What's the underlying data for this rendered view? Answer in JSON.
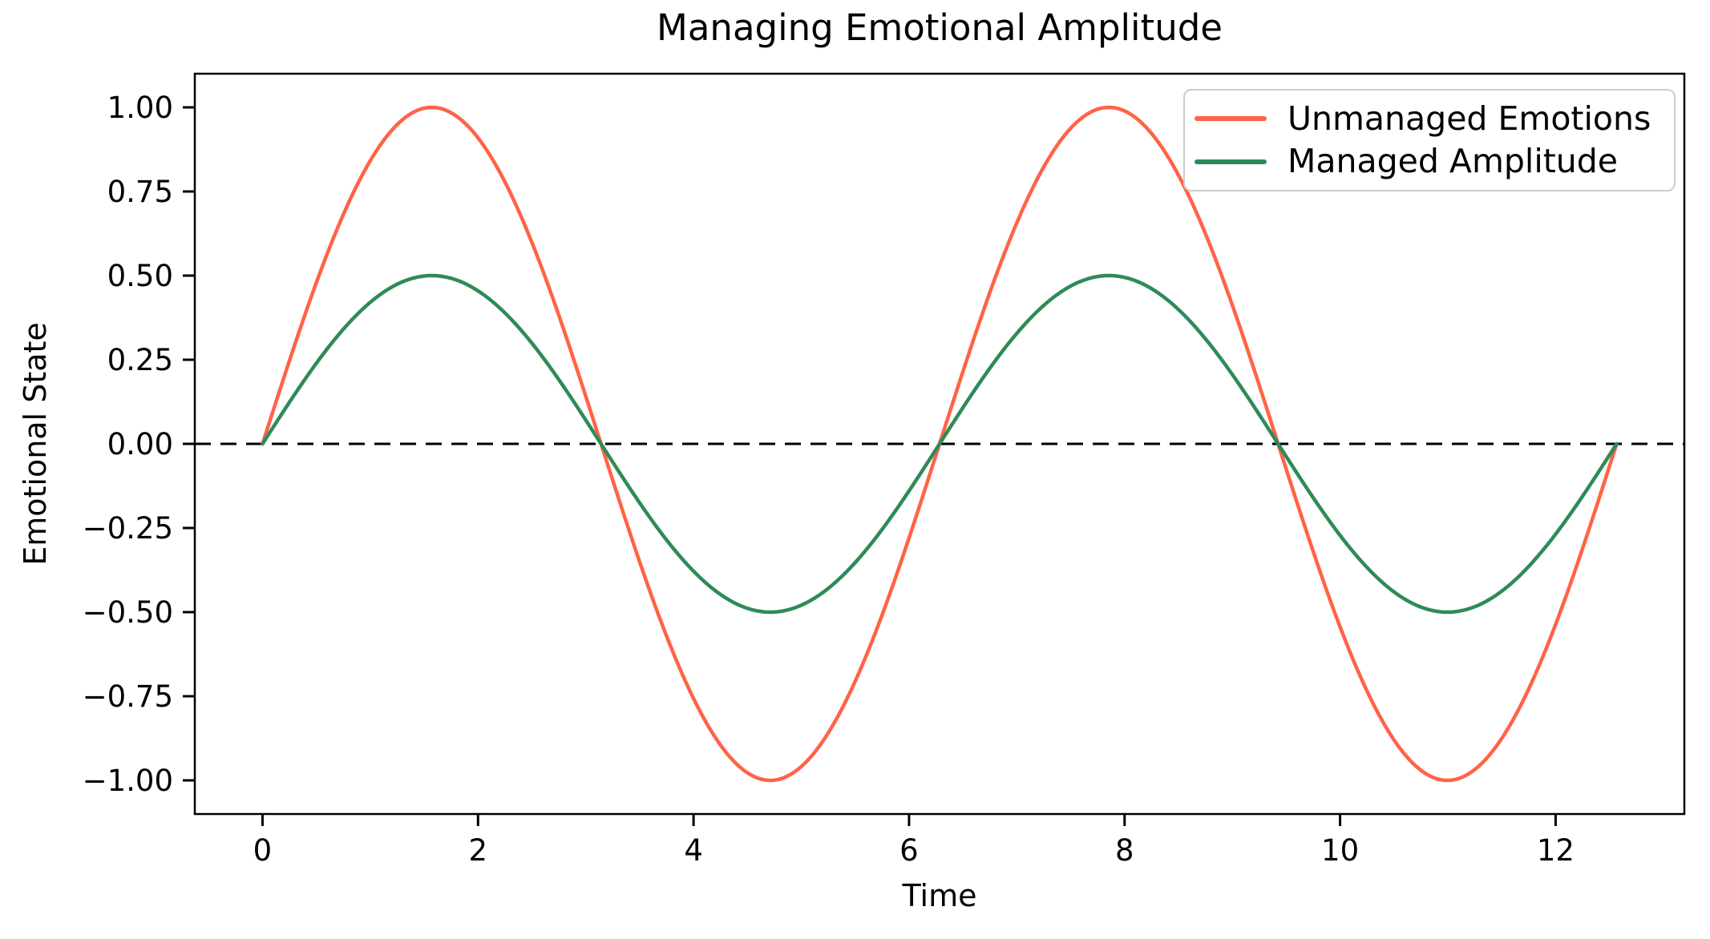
{
  "chart_data": {
    "type": "line",
    "title": "Managing Emotional Amplitude",
    "xlabel": "Time",
    "ylabel": "Emotional State",
    "grid": false,
    "legend_position": "upper right",
    "waveform": "sine",
    "x_range": [
      0,
      12.5664
    ],
    "xlim": [
      -0.6283,
      13.1947
    ],
    "ylim": [
      -1.1,
      1.1
    ],
    "xticks": {
      "values": [
        0,
        2,
        4,
        6,
        8,
        10,
        12
      ],
      "labels": [
        "0",
        "2",
        "4",
        "6",
        "8",
        "10",
        "12"
      ]
    },
    "yticks": {
      "values": [
        1.0,
        0.75,
        0.5,
        0.25,
        0.0,
        -0.25,
        -0.5,
        -0.75,
        -1.0
      ],
      "labels": [
        "1.00",
        "0.75",
        "0.50",
        "0.25",
        "0.00",
        "−0.25",
        "−0.50",
        "−0.75",
        "−1.00"
      ]
    },
    "x": [
      0,
      0.314,
      0.628,
      0.942,
      1.257,
      1.571,
      1.885,
      2.199,
      2.513,
      2.827,
      3.142,
      3.456,
      3.77,
      4.084,
      4.398,
      4.712,
      5.027,
      5.341,
      5.655,
      5.969,
      6.283,
      6.597,
      6.912,
      7.226,
      7.54,
      7.854,
      8.168,
      8.482,
      8.796,
      9.111,
      9.425,
      9.739,
      10.053,
      10.367,
      10.681,
      10.996,
      11.31,
      11.624,
      11.938,
      12.252,
      12.566
    ],
    "series": [
      {
        "name": "Unmanaged Emotions",
        "color": "#FF6347",
        "amplitude": 1.0,
        "y": [
          0,
          0.309,
          0.588,
          0.809,
          0.951,
          1,
          0.951,
          0.809,
          0.588,
          0.309,
          0,
          -0.309,
          -0.588,
          -0.809,
          -0.951,
          -1,
          -0.951,
          -0.809,
          -0.588,
          -0.309,
          0,
          0.309,
          0.588,
          0.809,
          0.951,
          1,
          0.951,
          0.809,
          0.588,
          0.309,
          0,
          -0.309,
          -0.588,
          -0.809,
          -0.951,
          -1,
          -0.951,
          -0.809,
          -0.588,
          -0.309,
          0
        ]
      },
      {
        "name": "Managed Amplitude",
        "color": "#2E8B57",
        "amplitude": 0.5,
        "y": [
          0,
          0.155,
          0.294,
          0.405,
          0.476,
          0.5,
          0.476,
          0.405,
          0.294,
          0.155,
          0,
          -0.155,
          -0.294,
          -0.405,
          -0.476,
          -0.5,
          -0.476,
          -0.405,
          -0.294,
          -0.155,
          0,
          0.155,
          0.294,
          0.405,
          0.476,
          0.5,
          0.476,
          0.405,
          0.294,
          0.155,
          0,
          -0.155,
          -0.294,
          -0.405,
          -0.476,
          -0.5,
          -0.476,
          -0.405,
          -0.294,
          -0.155,
          0
        ]
      }
    ],
    "reference_line": {
      "y": 0,
      "style": "dashed",
      "color": "#000000"
    }
  }
}
